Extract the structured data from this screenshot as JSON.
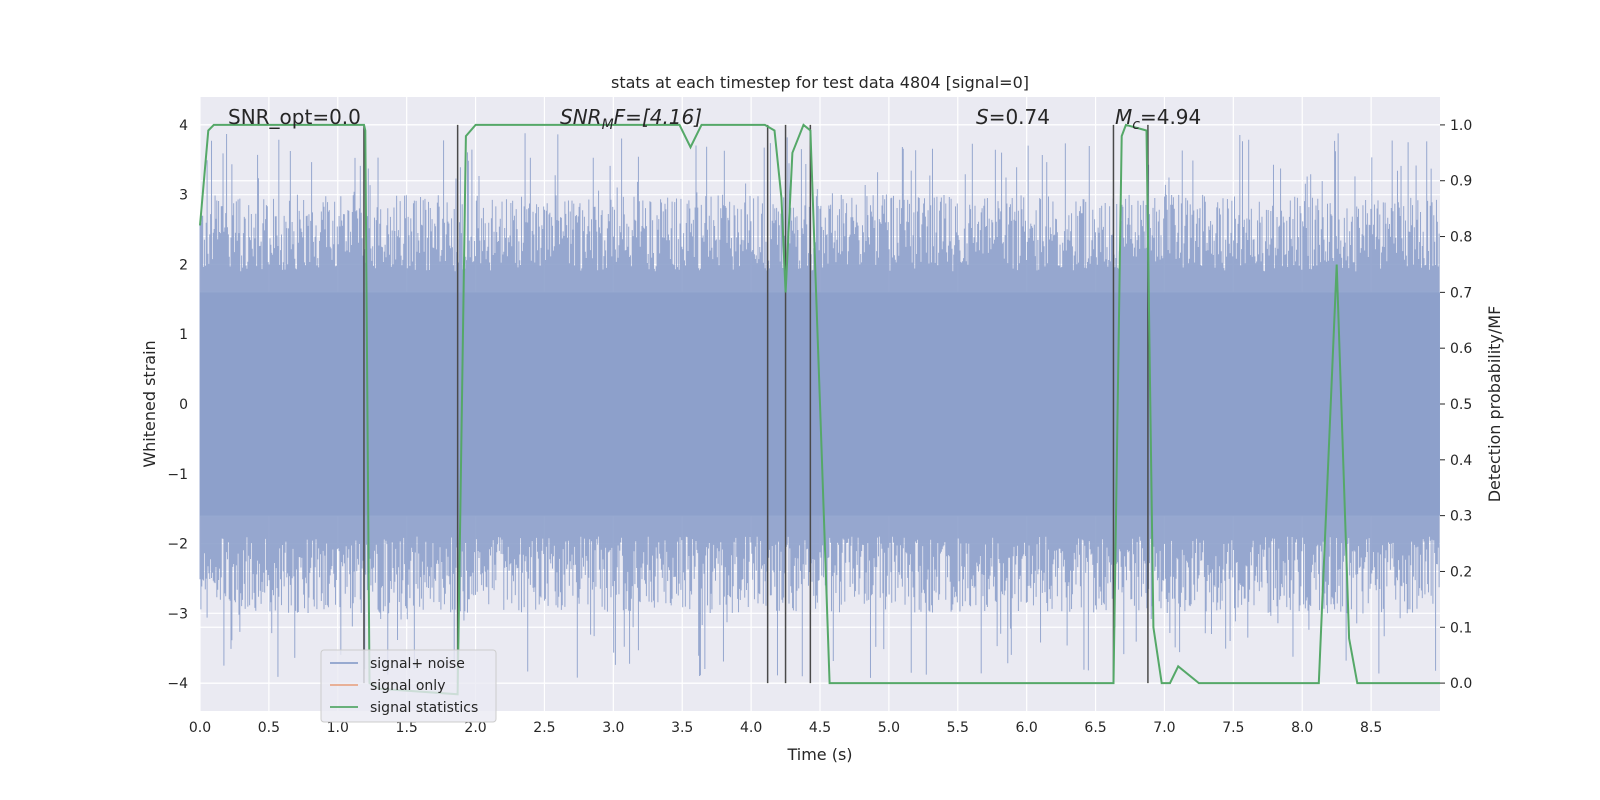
{
  "chart_data": {
    "type": "line",
    "title": "stats at each timestep for test data 4804 [signal=0]",
    "xlabel": "Time (s)",
    "ylabel_left": "Whitened strain",
    "ylabel_right": "Detection probability/MF",
    "xlim": [
      0.0,
      9.0
    ],
    "ylim_left": [
      -4.4,
      4.4
    ],
    "ylim_right": [
      -0.05,
      1.05
    ],
    "xticks": [
      "0.0",
      "0.5",
      "1.0",
      "1.5",
      "2.0",
      "2.5",
      "3.0",
      "3.5",
      "4.0",
      "4.5",
      "5.0",
      "5.5",
      "6.0",
      "6.5",
      "7.0",
      "7.5",
      "8.0",
      "8.5"
    ],
    "yticks_left": [
      "4",
      "3",
      "2",
      "1",
      "0",
      "−1",
      "−2",
      "−3",
      "−4"
    ],
    "yticks_right": [
      "1.0",
      "0.9",
      "0.8",
      "0.7",
      "0.6",
      "0.5",
      "0.4",
      "0.3",
      "0.2",
      "0.1",
      "0.0"
    ],
    "grid": true,
    "legend_position": "lower-left",
    "annotations": {
      "snr_opt": "SNR_opt=0.0",
      "snr_mf_a": "SNR",
      "snr_mf_b": "M",
      "snr_mf_c": "F=[4.16]",
      "s_a": "S",
      "s_b": "=0.74",
      "mc_a": "M",
      "mc_b": "c",
      "mc_c": "=4.94"
    },
    "series": [
      {
        "name": "signal+ noise",
        "color": "#8da0cb",
        "description_values": "whitened noise, approx amplitude within [-4, 4]"
      },
      {
        "name": "signal only",
        "color": "#e8a88a",
        "values": []
      },
      {
        "name": "signal statistics",
        "color": "#55a868",
        "x": [
          0.0,
          0.06,
          0.1,
          1.19,
          1.2,
          1.23,
          1.3,
          1.87,
          1.93,
          2.0,
          3.48,
          3.56,
          3.64,
          4.1,
          4.17,
          4.22,
          4.25,
          4.3,
          4.38,
          4.43,
          4.5,
          4.57,
          6.63,
          6.69,
          6.72,
          6.87,
          6.92,
          6.98,
          7.04,
          7.1,
          7.25,
          8.12,
          8.25,
          8.34,
          8.4,
          9.0
        ],
        "y": [
          0.82,
          0.99,
          1.0,
          1.0,
          0.99,
          0.0,
          -0.01,
          -0.02,
          0.98,
          1.0,
          1.0,
          0.96,
          1.0,
          1.0,
          0.99,
          0.87,
          0.7,
          0.95,
          1.0,
          0.99,
          0.5,
          0.0,
          0.0,
          0.98,
          1.0,
          0.99,
          0.1,
          0.0,
          0.0,
          0.03,
          0.0,
          0.0,
          0.75,
          0.08,
          0.0,
          0.0
        ]
      }
    ],
    "vertical_lines_x": [
      1.19,
      1.87,
      4.12,
      4.25,
      4.43,
      6.63,
      6.88
    ],
    "vertical_lines_color": "#4a4a4a"
  }
}
